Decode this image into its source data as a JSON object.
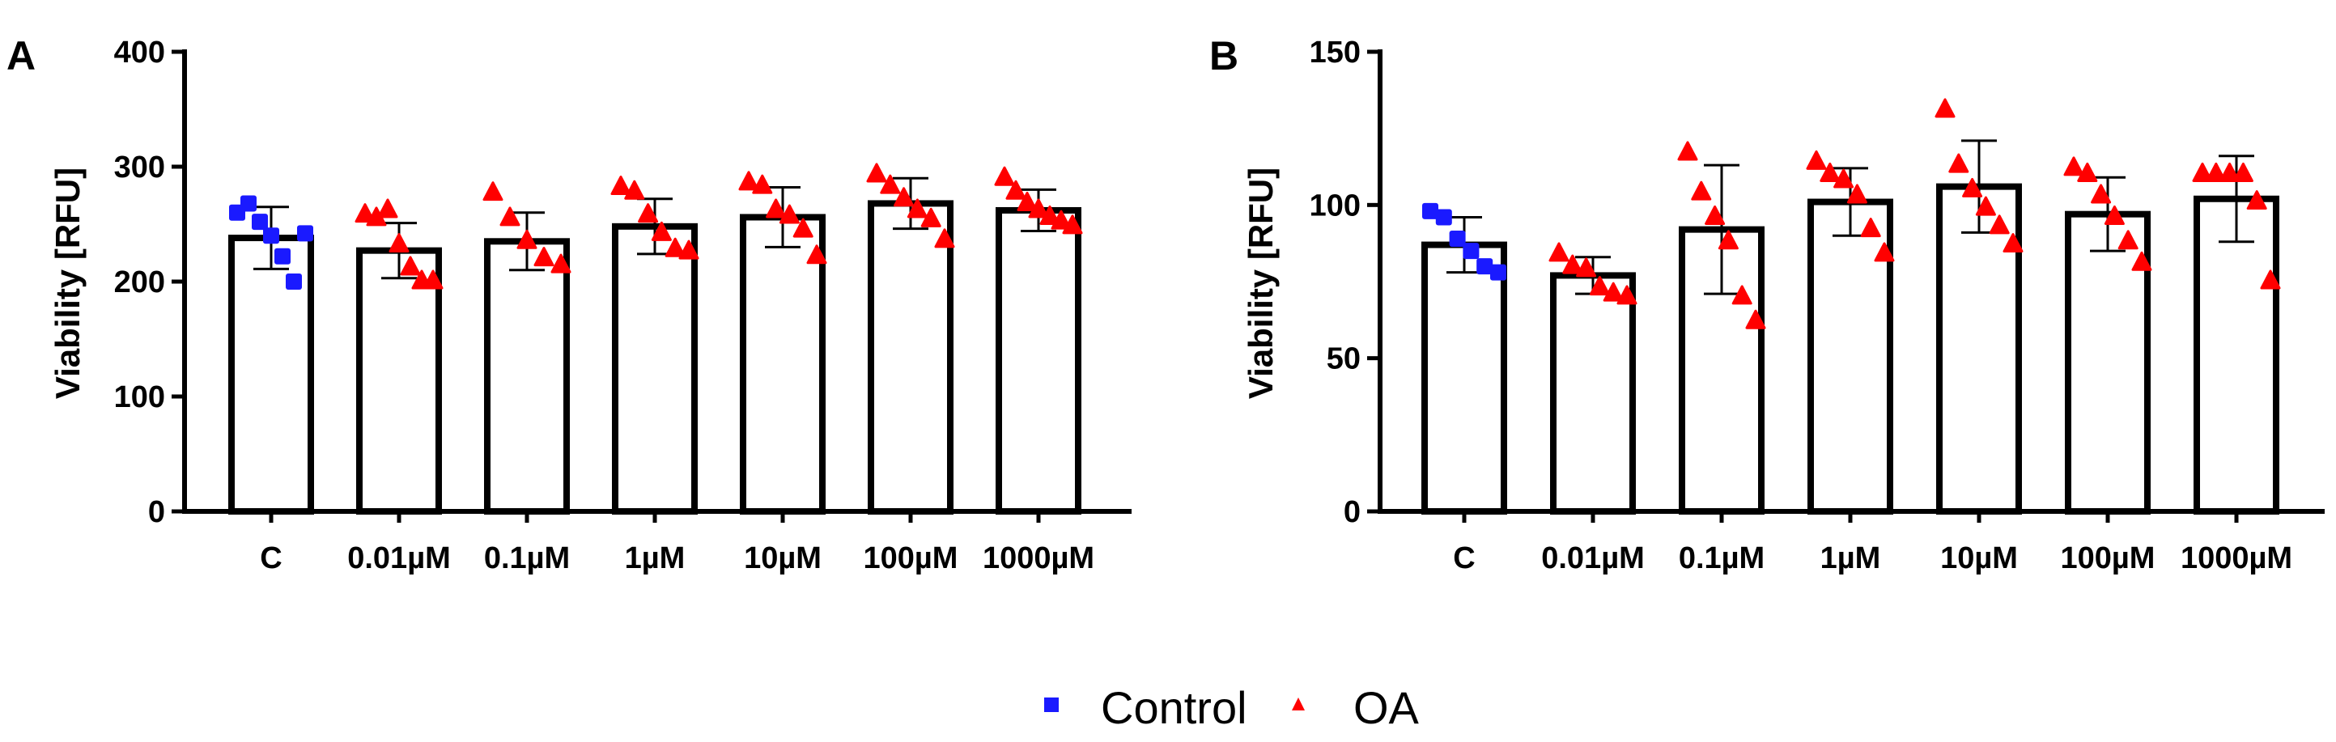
{
  "figure": {
    "legend": [
      {
        "label": "Control",
        "color": "#1a1aff",
        "marker": "square-marker"
      },
      {
        "label": "OA",
        "color": "#ff0000",
        "marker": "triangle-marker"
      }
    ]
  },
  "chart_data": [
    {
      "panel": "A",
      "type": "bar",
      "ylabel": "Viability [RFU]",
      "ylim": [
        0,
        400
      ],
      "yticks": [
        0,
        100,
        200,
        300,
        400
      ],
      "categories": [
        "C",
        "0.01µM",
        "0.1µM",
        "1µM",
        "10µM",
        "100µM",
        "1000µM"
      ],
      "means": [
        238,
        227,
        235,
        248,
        256,
        268,
        262
      ],
      "sd": [
        27,
        24,
        25,
        24,
        26,
        22,
        18
      ],
      "points": [
        [
          260,
          268,
          252,
          240,
          222,
          200,
          242
        ],
        [
          258,
          255,
          262,
          232,
          212,
          200,
          200
        ],
        [
          277,
          255,
          235,
          220,
          214
        ],
        [
          282,
          278,
          258,
          242,
          228,
          226
        ],
        [
          286,
          283,
          262,
          257,
          245,
          222
        ],
        [
          293,
          283,
          272,
          262,
          254,
          236
        ],
        [
          290,
          278,
          268,
          262,
          256,
          252,
          248
        ]
      ],
      "point_groups": [
        "Control",
        "OA",
        "OA",
        "OA",
        "OA",
        "OA",
        "OA"
      ]
    },
    {
      "panel": "B",
      "type": "bar",
      "ylabel": "Viability [RFU]",
      "ylim": [
        0,
        150
      ],
      "yticks": [
        0,
        50,
        100,
        150
      ],
      "categories": [
        "C",
        "0.01µM",
        "0.1µM",
        "1µM",
        "10µM",
        "100µM",
        "1000µM"
      ],
      "means": [
        87,
        77,
        92,
        101,
        106,
        97,
        102
      ],
      "sd": [
        9,
        6,
        21,
        11,
        15,
        12,
        14
      ],
      "points": [
        [
          98,
          96,
          89,
          85,
          80,
          78
        ],
        [
          84,
          80,
          79,
          73,
          71,
          70
        ],
        [
          117,
          104,
          96,
          88,
          70,
          62
        ],
        [
          114,
          110,
          108,
          103,
          92,
          84
        ],
        [
          131,
          113,
          105,
          99,
          93,
          87
        ],
        [
          112,
          110,
          103,
          96,
          88,
          81
        ],
        [
          110,
          110,
          110,
          110,
          101,
          75
        ]
      ],
      "point_groups": [
        "Control",
        "OA",
        "OA",
        "OA",
        "OA",
        "OA",
        "OA"
      ]
    }
  ]
}
